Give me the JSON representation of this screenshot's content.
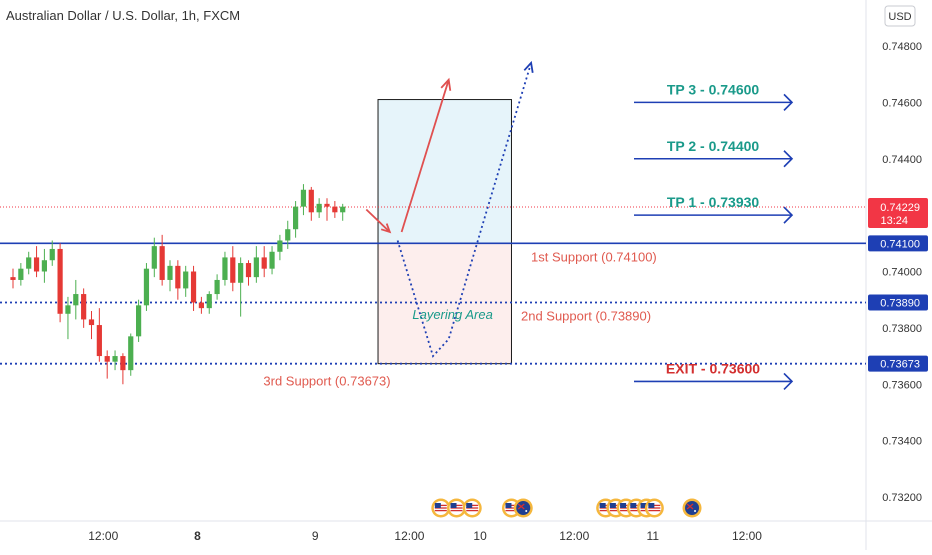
{
  "header": {
    "title": "Australian Dollar / U.S. Dollar, 1h, FXCM"
  },
  "currency_button": {
    "label": "USD"
  },
  "colors": {
    "bull": "#4caf50",
    "bear": "#e53935",
    "support_line": "#1e3fb4",
    "tp_text": "#1a9a8a",
    "support_text": "#e05a4f",
    "exit_text": "#d32f2f",
    "price_tag": "#f23645",
    "axis_text": "#333333"
  },
  "chart_data": {
    "type": "candlestick",
    "title": "Australian Dollar / U.S. Dollar, 1h, FXCM",
    "y_axis": {
      "range": [
        0.7308,
        0.7495
      ],
      "tick_labels": [
        "0.74800",
        "0.74600",
        "0.74400",
        "0.74200",
        "0.74000",
        "0.73800",
        "0.73600",
        "0.73400",
        "0.73200"
      ],
      "tick_values": [
        0.748,
        0.746,
        0.744,
        0.742,
        0.74,
        0.738,
        0.736,
        0.734,
        0.732
      ]
    },
    "x_axis": {
      "range_bars": [
        0,
        130
      ],
      "ticks": [
        {
          "label": "12:00",
          "bar": 11.5,
          "bold": false
        },
        {
          "label": "8",
          "bar": 23.5,
          "bold": true
        },
        {
          "label": "9",
          "bar": 38.5,
          "bold": false
        },
        {
          "label": "12:00",
          "bar": 50.5,
          "bold": false
        },
        {
          "label": "10",
          "bar": 59.5,
          "bold": false
        },
        {
          "label": "12:00",
          "bar": 71.5,
          "bold": false
        },
        {
          "label": "11",
          "bar": 81.5,
          "bold": false
        },
        {
          "label": "12:00",
          "bar": 93.5,
          "bold": false
        }
      ]
    },
    "candles": [
      [
        0.7398,
        0.7401,
        0.7394,
        0.7397
      ],
      [
        0.7397,
        0.7403,
        0.7395,
        0.7401
      ],
      [
        0.7401,
        0.7407,
        0.7399,
        0.7405
      ],
      [
        0.7405,
        0.7409,
        0.7398,
        0.74
      ],
      [
        0.74,
        0.7408,
        0.7396,
        0.7404
      ],
      [
        0.7404,
        0.7411,
        0.7402,
        0.7408
      ],
      [
        0.7408,
        0.741,
        0.7382,
        0.7385
      ],
      [
        0.7385,
        0.7391,
        0.7376,
        0.7388
      ],
      [
        0.7388,
        0.7397,
        0.7383,
        0.7392
      ],
      [
        0.7392,
        0.7394,
        0.738,
        0.7383
      ],
      [
        0.7383,
        0.7386,
        0.7376,
        0.7381
      ],
      [
        0.7381,
        0.7387,
        0.7368,
        0.737
      ],
      [
        0.737,
        0.7372,
        0.7362,
        0.7368
      ],
      [
        0.7368,
        0.7372,
        0.7365,
        0.737
      ],
      [
        0.737,
        0.7371,
        0.736,
        0.7365
      ],
      [
        0.7365,
        0.7378,
        0.7363,
        0.7377
      ],
      [
        0.7377,
        0.739,
        0.7375,
        0.7388
      ],
      [
        0.7388,
        0.7403,
        0.7386,
        0.7401
      ],
      [
        0.7401,
        0.7412,
        0.7398,
        0.7409
      ],
      [
        0.7409,
        0.7413,
        0.7395,
        0.7397
      ],
      [
        0.7397,
        0.7404,
        0.7393,
        0.7402
      ],
      [
        0.7402,
        0.7404,
        0.739,
        0.7394
      ],
      [
        0.7394,
        0.7402,
        0.7391,
        0.74
      ],
      [
        0.74,
        0.7402,
        0.7386,
        0.7389
      ],
      [
        0.7389,
        0.7391,
        0.7385,
        0.7387
      ],
      [
        0.7387,
        0.7393,
        0.7385,
        0.7392
      ],
      [
        0.7392,
        0.7399,
        0.739,
        0.7397
      ],
      [
        0.7397,
        0.7407,
        0.7395,
        0.7405
      ],
      [
        0.7405,
        0.7409,
        0.7393,
        0.7396
      ],
      [
        0.7396,
        0.7405,
        0.7384,
        0.7403
      ],
      [
        0.7403,
        0.7404,
        0.7395,
        0.7398
      ],
      [
        0.7398,
        0.7409,
        0.7396,
        0.7405
      ],
      [
        0.7405,
        0.7409,
        0.7398,
        0.7401
      ],
      [
        0.7401,
        0.7409,
        0.7399,
        0.7407
      ],
      [
        0.7407,
        0.7413,
        0.7404,
        0.7411
      ],
      [
        0.7411,
        0.7418,
        0.7408,
        0.7415
      ],
      [
        0.7415,
        0.7425,
        0.7412,
        0.7423
      ],
      [
        0.7423,
        0.7431,
        0.742,
        0.7429
      ],
      [
        0.7429,
        0.743,
        0.7418,
        0.7421
      ],
      [
        0.7421,
        0.7426,
        0.7419,
        0.7424
      ],
      [
        0.7424,
        0.7426,
        0.7418,
        0.7423
      ],
      [
        0.7423,
        0.7425,
        0.7419,
        0.7421
      ],
      [
        0.7421,
        0.7424,
        0.7418,
        0.7423
      ]
    ],
    "current_price": 0.74229,
    "horizontal_lines": [
      {
        "value": 0.741,
        "label": "0.74100",
        "style": "solid"
      },
      {
        "value": 0.7389,
        "label": "0.73890",
        "style": "dotted"
      },
      {
        "value": 0.73673,
        "label": "0.73673",
        "style": "dotted"
      }
    ],
    "price_tag": {
      "value": 0.74229,
      "label": "0.74229",
      "countdown": "13:24"
    },
    "zones": [
      {
        "name": "target-zone",
        "from": 0.741,
        "to": 0.7461,
        "bar_from": 46.5,
        "bar_to": 63.5,
        "fill": "#e6f4fa"
      },
      {
        "name": "layering-zone",
        "from": 0.73673,
        "to": 0.741,
        "bar_from": 46.5,
        "bar_to": 63.5,
        "fill": "#fdeeed"
      }
    ],
    "annotations": {
      "tp3": {
        "text": "TP 3 - 0.74600",
        "value": 0.746
      },
      "tp2": {
        "text": "TP 2 - 0.74400",
        "value": 0.744
      },
      "tp1": {
        "text": "TP 1 - 0.73930",
        "value": 0.742
      },
      "exit": {
        "text": "EXIT - 0.73600",
        "value": 0.7361
      },
      "support1": {
        "text": "1st Support (0.74100)",
        "value": 0.7405,
        "bar": 74
      },
      "support2": {
        "text": "2nd Support (0.73890)",
        "value": 0.7384,
        "bar": 73
      },
      "support3": {
        "text": "3rd Support (0.73673)",
        "value": 0.7361,
        "bar": 40
      },
      "layering": {
        "text": "Layering Area",
        "value": 0.73845,
        "bar": 56
      }
    },
    "red_path": [
      [
        45,
        0.7422
      ],
      [
        48,
        0.7414
      ]
    ],
    "red_arrow": [
      [
        49.5,
        0.7414
      ],
      [
        55.5,
        0.7468
      ]
    ],
    "blue_path": [
      [
        49,
        0.7411
      ],
      [
        53.5,
        0.737
      ],
      [
        55.5,
        0.7376
      ],
      [
        60.5,
        0.7423
      ],
      [
        66,
        0.7474
      ]
    ],
    "event_flags": [
      {
        "bar": 54.5,
        "type": "US"
      },
      {
        "bar": 56.5,
        "type": "US"
      },
      {
        "bar": 58.5,
        "type": "US"
      },
      {
        "bar": 63.5,
        "type": "US"
      },
      {
        "bar": 65.0,
        "type": "AU"
      },
      {
        "bar": 75.5,
        "type": "US"
      },
      {
        "bar": 76.8,
        "type": "US"
      },
      {
        "bar": 78.1,
        "type": "US"
      },
      {
        "bar": 79.4,
        "type": "US"
      },
      {
        "bar": 80.7,
        "type": "US"
      },
      {
        "bar": 81.7,
        "type": "US"
      },
      {
        "bar": 86.5,
        "type": "AU"
      }
    ]
  }
}
